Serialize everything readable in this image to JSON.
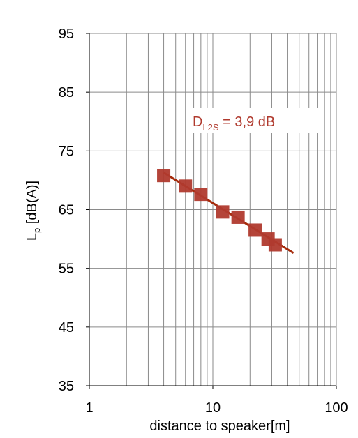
{
  "chart_data": {
    "type": "scatter",
    "title": "",
    "xlabel": "distance to speaker[m]",
    "ylabel_main": "L",
    "ylabel_sub": "p",
    "ylabel_rest": " [dB(A)]",
    "x_scale": "log",
    "xlim": [
      1,
      100
    ],
    "ylim": [
      35,
      95
    ],
    "x_ticks": [
      {
        "value": 1,
        "label": "1"
      },
      {
        "value": 10,
        "label": "10"
      },
      {
        "value": 100,
        "label": "100"
      }
    ],
    "y_ticks": [
      {
        "value": 35,
        "label": "35"
      },
      {
        "value": 45,
        "label": "45"
      },
      {
        "value": 55,
        "label": "55"
      },
      {
        "value": 65,
        "label": "65"
      },
      {
        "value": 75,
        "label": "75"
      },
      {
        "value": 85,
        "label": "85"
      },
      {
        "value": 95,
        "label": "95"
      }
    ],
    "grid": true,
    "series": [
      {
        "marker": "square",
        "color": "#b03a2e",
        "points": [
          {
            "x": 4,
            "y": 70.8
          },
          {
            "x": 6,
            "y": 69.0
          },
          {
            "x": 8,
            "y": 67.6
          },
          {
            "x": 12,
            "y": 64.6
          },
          {
            "x": 16,
            "y": 63.7
          },
          {
            "x": 22,
            "y": 61.5
          },
          {
            "x": 28,
            "y": 60.0
          },
          {
            "x": 32,
            "y": 59.0
          }
        ]
      }
    ],
    "trendline": {
      "color": "#a52a0a",
      "from": {
        "x": 4,
        "y": 71.3
      },
      "to": {
        "x": 45,
        "y": 57.6
      }
    },
    "annotation": {
      "main": "D",
      "sub": "L2S",
      "rest": " = 3,9 dB",
      "color": "#b03a2e"
    }
  }
}
